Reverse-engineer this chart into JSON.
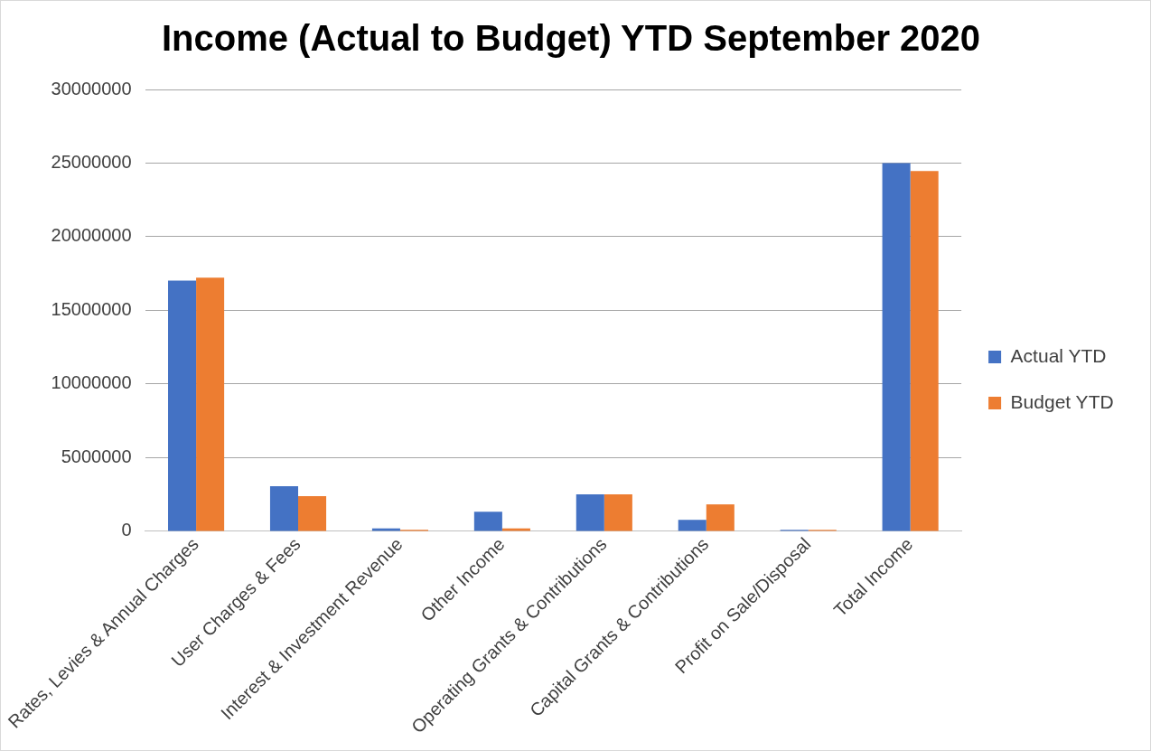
{
  "chart_data": {
    "type": "bar",
    "title": "Income (Actual to Budget) YTD September 2020",
    "categories": [
      "Rates, Levies & Annual Charges",
      "User Charges & Fees",
      "Interest & Investment Revenue",
      "Other Income",
      "Operating Grants & Contributions",
      "Capital Grants & Contributions",
      "Profit on Sale/Disposal",
      "Total Income"
    ],
    "series": [
      {
        "name": "Actual YTD",
        "color": "#4472c4",
        "values": [
          17020000,
          3070000,
          200000,
          1330000,
          2510000,
          780000,
          100000,
          25000000
        ]
      },
      {
        "name": "Budget YTD",
        "color": "#ed7d31",
        "values": [
          17220000,
          2390000,
          100000,
          200000,
          2510000,
          1830000,
          100000,
          24470000
        ]
      }
    ],
    "ylim": [
      0,
      30000000
    ],
    "yticks": [
      0,
      5000000,
      10000000,
      15000000,
      20000000,
      25000000,
      30000000
    ],
    "grid": "y",
    "legend": "right"
  }
}
